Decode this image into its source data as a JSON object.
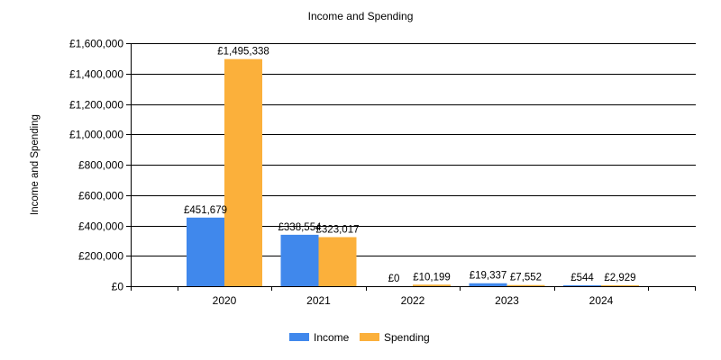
{
  "chart_data": {
    "type": "bar",
    "title": "Income and Spending",
    "xlabel": "",
    "ylabel": "Income and Spending",
    "categories": [
      "2020",
      "2021",
      "2022",
      "2023",
      "2024"
    ],
    "series": [
      {
        "name": "Income",
        "color": "#4088EC",
        "values": [
          451679,
          338554,
          0,
          19337,
          544
        ],
        "labels": [
          "£451,679",
          "£338,554",
          "£0",
          "£19,337",
          "£544"
        ]
      },
      {
        "name": "Spending",
        "color": "#FBB03B",
        "values": [
          1495338,
          323017,
          10199,
          7552,
          2929
        ],
        "labels": [
          "£1,495,338",
          "£323,017",
          "£10,199",
          "£7,552",
          "£2,929"
        ]
      }
    ],
    "ylim": [
      0,
      1600000
    ],
    "yticks": [
      0,
      200000,
      400000,
      600000,
      800000,
      1000000,
      1200000,
      1400000,
      1600000
    ],
    "ytick_labels": [
      "£0",
      "£200,000",
      "£400,000",
      "£600,000",
      "£800,000",
      "£1,000,000",
      "£1,200,000",
      "£1,400,000",
      "£1,600,000"
    ],
    "grid": true,
    "legend_position": "bottom-center"
  }
}
